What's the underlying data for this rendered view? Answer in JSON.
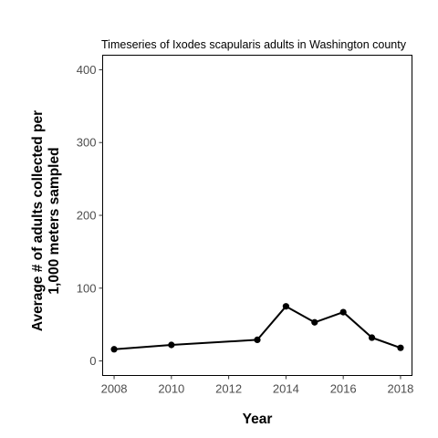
{
  "chart_data": {
    "type": "line",
    "title": "Timeseries of Ixodes scapularis adults in Washington county",
    "xlabel": "Year",
    "ylabel_lines": [
      "Average # of adults collected per",
      "1,000 meters sampled"
    ],
    "xlim": [
      2007.6,
      2018.4
    ],
    "ylim": [
      -20,
      420
    ],
    "x_ticks": [
      2008,
      2010,
      2012,
      2014,
      2016,
      2018
    ],
    "y_ticks": [
      0,
      100,
      200,
      300,
      400
    ],
    "grid": false,
    "series": [
      {
        "x": [
          2008,
          2010,
          2013,
          2014,
          2015,
          2016,
          2017,
          2018
        ],
        "y": [
          16,
          22,
          29,
          75,
          53,
          67,
          32,
          18
        ],
        "color": "#000000"
      }
    ]
  }
}
